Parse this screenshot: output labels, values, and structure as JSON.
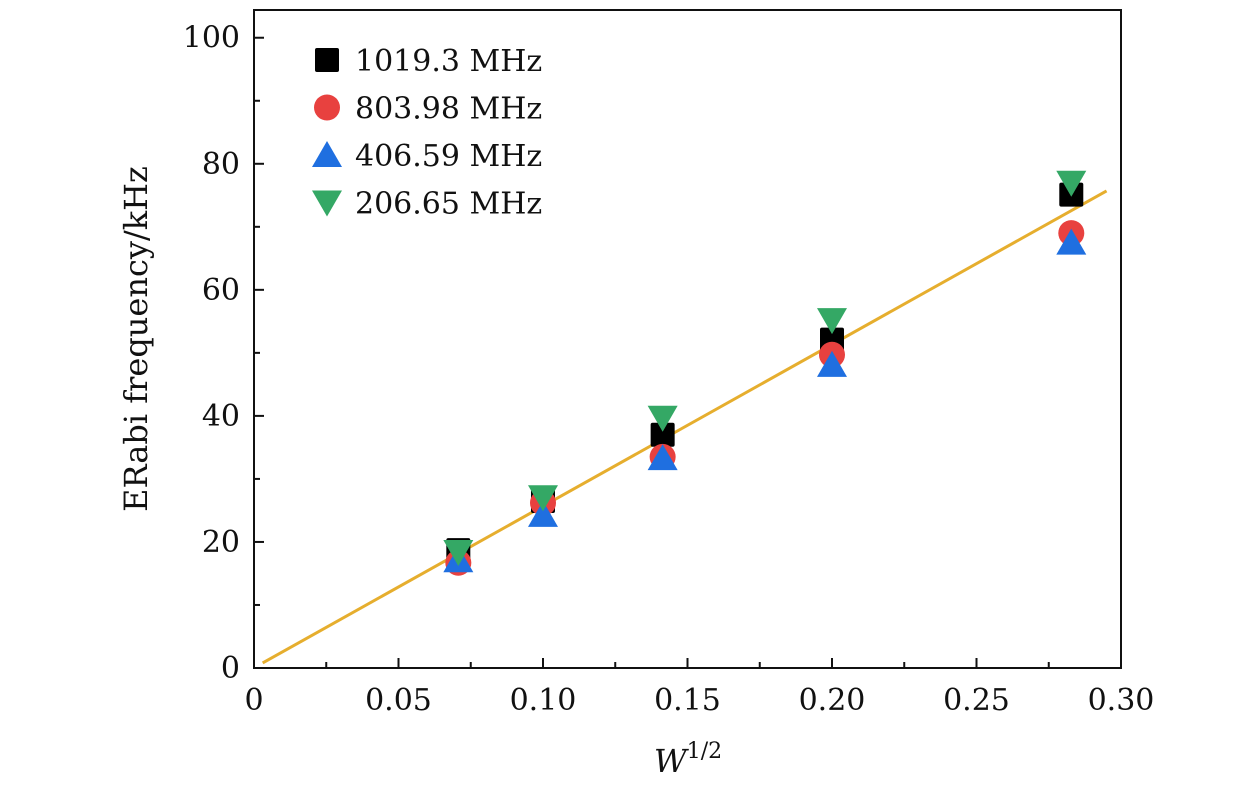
{
  "chart_data": {
    "type": "scatter",
    "xlabel": "W",
    "xlabel_sup": "1/2",
    "ylabel": "ERabi frequency/kHz",
    "xlim": [
      0,
      0.3
    ],
    "ylim": [
      0,
      104.4
    ],
    "x_ticks": [
      "0",
      "0.05",
      "0.10",
      "0.15",
      "0.20",
      "0.25",
      "0.30"
    ],
    "y_ticks": [
      "0",
      "20",
      "40",
      "60",
      "80",
      "100"
    ],
    "grid": false,
    "legend_position": "top-left",
    "x": [
      0.0707,
      0.1,
      0.1414,
      0.2,
      0.2828
    ],
    "series": [
      {
        "name": "1019.3 MHz",
        "marker": "square",
        "color": "#000000",
        "values": [
          18.7,
          26.5,
          37.0,
          52.1,
          75.1
        ]
      },
      {
        "name": "803.98 MHz",
        "marker": "circle",
        "color": "#e8413f",
        "values": [
          16.7,
          26.2,
          33.5,
          49.7,
          69.0
        ]
      },
      {
        "name": "406.59 MHz",
        "marker": "triangle-up",
        "color": "#1f6fe0",
        "values": [
          17.1,
          24.3,
          33.3,
          48.1,
          67.5
        ]
      },
      {
        "name": "206.65 MHz",
        "marker": "triangle-down",
        "color": "#34a865",
        "values": [
          18.4,
          27.1,
          39.7,
          55.2,
          77.0
        ]
      }
    ],
    "fit_line": {
      "color": "#e6ae2e",
      "x": [
        0.003,
        0.295
      ],
      "y": [
        0.8,
        75.7
      ]
    }
  }
}
